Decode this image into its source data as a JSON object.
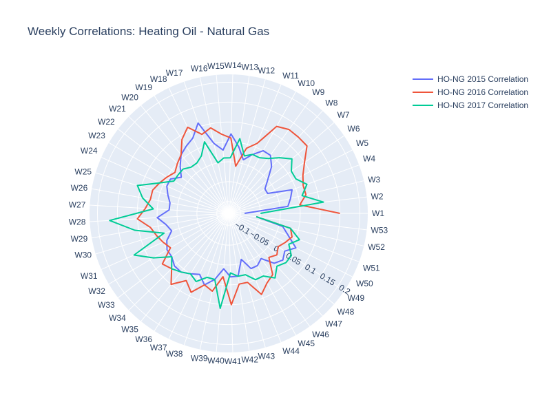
{
  "chart_data": {
    "type": "line",
    "subtype": "polar",
    "title": "Weekly Correlations: Heating Oil - Natural Gas",
    "theta_labels": [
      "W1",
      "W2",
      "W3",
      "W4",
      "W5",
      "W6",
      "W7",
      "W8",
      "W9",
      "W10",
      "W11",
      "W12",
      "W13",
      "W14",
      "W15",
      "W16",
      "W17",
      "W18",
      "W19",
      "W20",
      "W21",
      "W22",
      "W23",
      "W24",
      "W25",
      "W26",
      "W27",
      "W28",
      "W29",
      "W30",
      "W31",
      "W32",
      "W33",
      "W34",
      "W35",
      "W36",
      "W37",
      "W38",
      "W39",
      "W40",
      "W41",
      "W42",
      "W43",
      "W44",
      "W45",
      "W46",
      "W47",
      "W48",
      "W49",
      "W50",
      "W51",
      "W52",
      "W53"
    ],
    "radial_ticks": [
      "−0.1",
      "−0.05",
      "0",
      "0.05",
      "0.1",
      "0.15",
      "0.2"
    ],
    "radial_range": [
      -0.13,
      0.22
    ],
    "angular_direction": "counterclockwise",
    "rotation_deg": 0,
    "grid": true,
    "legend_position": "top-right",
    "series": [
      {
        "name": "HO-NG 2015 Correlation",
        "color": "#636efa",
        "values": [
          -0.09,
          0.02,
          0.03,
          0.04,
          -0.02,
          -0.02,
          0.0,
          0.03,
          0.05,
          0.05,
          0.03,
          0.01,
          0.04,
          0.07,
          0.03,
          0.05,
          0.11,
          0.08,
          0.07,
          0.06,
          0.04,
          0.02,
          0.04,
          0.04,
          0.03,
          0.02,
          0.02,
          0.05,
          0.03,
          0.02,
          0.04,
          0.05,
          0.05,
          0.06,
          0.06,
          0.05,
          0.04,
          0.06,
          0.04,
          0.01,
          0.03,
          0.03,
          -0.01,
          0.02,
          0.02,
          0.01,
          0.04,
          0.05,
          0.04,
          0.06,
          0.03,
          0.01,
          -0.06
        ]
      },
      {
        "name": "HO-NG 2016 Correlation",
        "color": "#ef553b",
        "values": [
          0.15,
          0.05,
          0.07,
          0.07,
          0.08,
          0.1,
          0.13,
          0.13,
          0.13,
          0.12,
          0.06,
          0.04,
          -0.01,
          0.06,
          0.07,
          0.09,
          0.08,
          0.11,
          0.09,
          0.06,
          0.05,
          0.04,
          0.05,
          0.06,
          0.07,
          0.07,
          0.08,
          0.1,
          0.07,
          0.06,
          0.05,
          0.04,
          0.08,
          0.07,
          0.1,
          0.07,
          0.09,
          0.06,
          0.07,
          0.03,
          0.1,
          0.05,
          0.05,
          0.09,
          0.07,
          0.06,
          0.02,
          0.03,
          0.02,
          0.03,
          0.04,
          0.03,
          -0.06
        ]
      },
      {
        "name": "HO-NG 2017 Correlation",
        "color": "#00cc96",
        "values": [
          -0.05,
          0.11,
          0.06,
          0.08,
          0.06,
          0.06,
          0.08,
          0.06,
          0.04,
          0.03,
          0.03,
          0.02,
          0.06,
          0.01,
          0.01,
          0.0,
          0.06,
          0.03,
          0.02,
          0.02,
          0.03,
          0.03,
          0.03,
          0.06,
          0.11,
          0.09,
          0.06,
          0.17,
          0.11,
          0.04,
          0.13,
          0.09,
          0.05,
          0.07,
          0.06,
          0.05,
          0.06,
          0.04,
          0.04,
          0.11,
          0.02,
          0.03,
          0.03,
          0.05,
          0.05,
          0.07,
          0.05,
          0.06,
          0.06,
          0.04,
          0.06,
          0.03,
          -0.06
        ]
      }
    ]
  }
}
